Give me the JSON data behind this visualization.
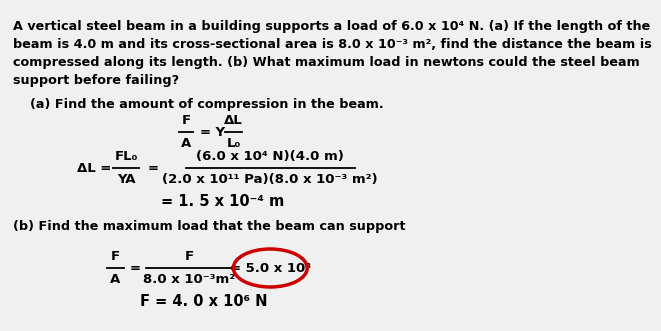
{
  "bg_color": "#f0f0f0",
  "text_color": "#000000",
  "circle_color": "#cc0000",
  "title_lines": [
    "A vertical steel beam in a building supports a load of 6.0 x 10⁴ N. (a) If the length of the",
    "beam is 4.0 m and its cross-sectional area is 8.0 x 10⁻³ m², find the distance the beam is",
    "compressed along its length. (b) What maximum load in newtons could the steel beam",
    "support before failing?"
  ],
  "part_a_header": "(a) Find the amount of compression in the beam.",
  "part_b_header": "(b) Find the maximum load that the beam can support",
  "eq1_F": "F",
  "eq1_A": "A",
  "eq1_eqY": "= Y",
  "eq1_dL": "ΔL",
  "eq1_L0": "L₀",
  "eq2_dL_eq": "ΔL =",
  "eq2_FL0": "FL₀",
  "eq2_YA": "YA",
  "eq2_equals": "=",
  "eq2_num": "(6.0 x 10⁴ N)(4.0 m)",
  "eq2_den": "(2.0 x 10¹¹ Pa)(8.0 x 10⁻³ m²)",
  "eq2_result": "= 1. 5 x 10⁻⁴ m",
  "eq3_F_num": "F",
  "eq3_A_den": "A",
  "eq3_equals": "=",
  "eq3_F2_num": "F",
  "eq3_den": "8.0 x 10⁻³m²",
  "eq3_circled": "= 5.0 x 10⁸",
  "eq3_result": "F = 4. 0 x 10⁶ N",
  "fs_title": 9.2,
  "fs_math": 9.5,
  "fs_result": 10.5
}
